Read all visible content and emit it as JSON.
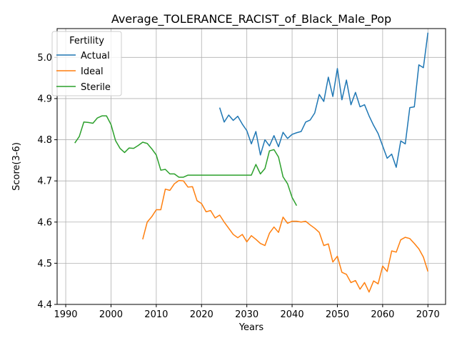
{
  "chart_data": {
    "type": "line",
    "title": "Average_TOLERANCE_RACIST_of_Black_Male_Pop",
    "xlabel": "Years",
    "ylabel": "Score(3-6)",
    "xlim": [
      1988.1,
      2073.9
    ],
    "ylim": [
      4.4,
      5.07
    ],
    "xticks": [
      1990,
      2000,
      2010,
      2020,
      2030,
      2040,
      2050,
      2060,
      2070
    ],
    "yticks": [
      4.4,
      4.5,
      4.6,
      4.7,
      4.8,
      4.9,
      5.0
    ],
    "grid": true,
    "legend": {
      "title": "Fertility",
      "placement": "upper-left"
    },
    "series": [
      {
        "name": "Actual",
        "color": "#1f77b4",
        "x": [
          2024,
          2025,
          2026,
          2027,
          2028,
          2029,
          2030,
          2031,
          2032,
          2033,
          2034,
          2035,
          2036,
          2037,
          2038,
          2039,
          2040,
          2041,
          2042,
          2043,
          2044,
          2045,
          2046,
          2047,
          2048,
          2049,
          2050,
          2051,
          2052,
          2053,
          2054,
          2055,
          2056,
          2057,
          2058,
          2059,
          2060,
          2061,
          2062,
          2063,
          2064,
          2065,
          2066,
          2067,
          2068,
          2069,
          2070
        ],
        "y": [
          4.878,
          4.843,
          4.86,
          4.847,
          4.857,
          4.838,
          4.822,
          4.79,
          4.82,
          4.763,
          4.8,
          4.785,
          4.81,
          4.783,
          4.818,
          4.803,
          4.813,
          4.817,
          4.82,
          4.843,
          4.848,
          4.865,
          4.91,
          4.893,
          4.952,
          4.905,
          4.973,
          4.897,
          4.945,
          4.885,
          4.915,
          4.88,
          4.885,
          4.858,
          4.835,
          4.815,
          4.785,
          4.755,
          4.765,
          4.733,
          4.797,
          4.79,
          4.878,
          4.88,
          4.982,
          4.975,
          5.06
        ]
      },
      {
        "name": "Ideal",
        "color": "#ff7f0e",
        "x": [
          2007,
          2008,
          2009,
          2010,
          2011,
          2012,
          2013,
          2014,
          2015,
          2016,
          2017,
          2018,
          2019,
          2020,
          2021,
          2022,
          2023,
          2024,
          2025,
          2026,
          2027,
          2028,
          2029,
          2030,
          2031,
          2032,
          2033,
          2034,
          2035,
          2036,
          2037,
          2038,
          2039,
          2040,
          2041,
          2042,
          2043,
          2044,
          2045,
          2046,
          2047,
          2048,
          2049,
          2050,
          2051,
          2052,
          2053,
          2054,
          2055,
          2056,
          2057,
          2058,
          2059,
          2060,
          2061,
          2062,
          2063,
          2064,
          2065,
          2066,
          2067,
          2068,
          2069,
          2070
        ],
        "y": [
          4.558,
          4.6,
          4.613,
          4.63,
          4.63,
          4.68,
          4.677,
          4.693,
          4.701,
          4.7,
          4.685,
          4.686,
          4.652,
          4.645,
          4.625,
          4.628,
          4.61,
          4.617,
          4.6,
          4.585,
          4.57,
          4.562,
          4.57,
          4.552,
          4.567,
          4.558,
          4.548,
          4.543,
          4.573,
          4.588,
          4.575,
          4.612,
          4.597,
          4.602,
          4.602,
          4.6,
          4.602,
          4.593,
          4.585,
          4.575,
          4.543,
          4.547,
          4.503,
          4.517,
          4.478,
          4.473,
          4.453,
          4.458,
          4.437,
          4.453,
          4.43,
          4.457,
          4.45,
          4.493,
          4.48,
          4.53,
          4.527,
          4.557,
          4.563,
          4.56,
          4.548,
          4.535,
          4.515,
          4.48
        ]
      },
      {
        "name": "Sterile",
        "color": "#2ca02c",
        "x": [
          1992,
          1993,
          1994,
          1995,
          1996,
          1997,
          1998,
          1999,
          2000,
          2001,
          2002,
          2003,
          2004,
          2005,
          2006,
          2007,
          2008,
          2009,
          2010,
          2011,
          2012,
          2013,
          2014,
          2015,
          2016,
          2017,
          2018,
          2019,
          2020,
          2021,
          2022,
          2023,
          2024,
          2025,
          2026,
          2027,
          2028,
          2029,
          2030,
          2031,
          2032,
          2033,
          2034,
          2035,
          2036,
          2037,
          2038,
          2039,
          2040,
          2041
        ],
        "y": [
          4.792,
          4.808,
          4.843,
          4.842,
          4.84,
          4.853,
          4.858,
          4.858,
          4.837,
          4.798,
          4.779,
          4.769,
          4.78,
          4.779,
          4.786,
          4.794,
          4.791,
          4.778,
          4.763,
          4.726,
          4.728,
          4.717,
          4.717,
          4.709,
          4.709,
          4.714,
          4.714,
          4.714,
          4.714,
          4.714,
          4.714,
          4.714,
          4.714,
          4.714,
          4.714,
          4.714,
          4.714,
          4.714,
          4.714,
          4.714,
          4.74,
          4.717,
          4.73,
          4.773,
          4.776,
          4.758,
          4.71,
          4.693,
          4.66,
          4.64
        ]
      }
    ]
  }
}
